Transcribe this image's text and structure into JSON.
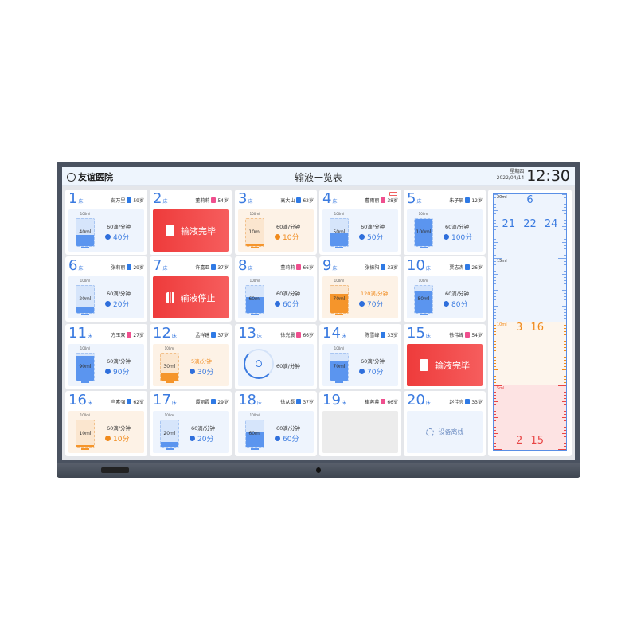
{
  "header": {
    "hospital": "友谊医院",
    "title": "输液一览表",
    "weekday": "星期四",
    "date": "2022/04/14",
    "time": "12:30"
  },
  "bed_suffix": "床",
  "colors": {
    "blue": "#3b7be0",
    "orange": "#f08a1c",
    "red": "#ee3b3b",
    "male": "#2f7ae5",
    "female": "#ef4f8e"
  },
  "cards": [
    {
      "bed": "1",
      "name": "彭万里",
      "gender": "male",
      "age": "59岁",
      "status": "normal",
      "capacity": "100ml",
      "volume": "40ml",
      "fill": 0.4,
      "rate": "60滴/分钟",
      "remaining": "40分"
    },
    {
      "bed": "2",
      "name": "董莉莉",
      "gender": "female",
      "age": "54岁",
      "status": "complete",
      "message": "输液完毕"
    },
    {
      "bed": "3",
      "name": "高大山",
      "gender": "male",
      "age": "62岁",
      "status": "warning",
      "capacity": "100ml",
      "volume": "10ml",
      "fill": 0.1,
      "rate": "60滴/分钟",
      "remaining": "10分"
    },
    {
      "bed": "4",
      "name": "曹雨丽",
      "gender": "female",
      "age": "38岁",
      "status": "normal",
      "battery_low": true,
      "capacity": "100ml",
      "volume": "50ml",
      "fill": 0.5,
      "rate": "60滴/分钟",
      "remaining": "50分"
    },
    {
      "bed": "5",
      "name": "朱子辰",
      "gender": "male",
      "age": "12岁",
      "status": "normal",
      "capacity": "100ml",
      "volume": "100ml",
      "fill": 1.0,
      "rate": "60滴/分钟",
      "remaining": "100分"
    },
    {
      "bed": "6",
      "name": "张莉丽",
      "gender": "male",
      "age": "29岁",
      "status": "normal",
      "capacity": "100ml",
      "volume": "20ml",
      "fill": 0.2,
      "rate": "60滴/分钟",
      "remaining": "20分"
    },
    {
      "bed": "7",
      "name": "许嘉亚",
      "gender": "male",
      "age": "37岁",
      "status": "stopped",
      "message": "输液停止"
    },
    {
      "bed": "8",
      "name": "董莉莉",
      "gender": "female",
      "age": "66岁",
      "status": "normal",
      "capacity": "100ml",
      "volume": "60ml",
      "fill": 0.6,
      "rate": "60滴/分钟",
      "remaining": "60分"
    },
    {
      "bed": "9",
      "name": "张振阳",
      "gender": "male",
      "age": "33岁",
      "status": "fast",
      "capacity": "100ml",
      "volume": "70ml",
      "fill": 0.7,
      "rate": "120滴/分钟",
      "remaining": "70分"
    },
    {
      "bed": "10",
      "name": "贾志杰",
      "gender": "male",
      "age": "26岁",
      "status": "normal",
      "capacity": "100ml",
      "volume": "80ml",
      "fill": 0.8,
      "rate": "60滴/分钟",
      "remaining": "80分"
    },
    {
      "bed": "11",
      "name": "方玉双",
      "gender": "female",
      "age": "27岁",
      "status": "normal",
      "capacity": "100ml",
      "volume": "90ml",
      "fill": 0.9,
      "rate": "60滴/分钟",
      "remaining": "90分"
    },
    {
      "bed": "12",
      "name": "孟祥建",
      "gender": "male",
      "age": "37岁",
      "status": "slow",
      "capacity": "100ml",
      "volume": "30ml",
      "fill": 0.3,
      "rate": "5滴/分钟",
      "remaining": "30分"
    },
    {
      "bed": "13",
      "name": "徐光晨",
      "gender": "female",
      "age": "66岁",
      "status": "measuring",
      "rate": "60滴/分钟"
    },
    {
      "bed": "14",
      "name": "陈雪峰",
      "gender": "male",
      "age": "33岁",
      "status": "normal",
      "capacity": "100ml",
      "volume": "70ml",
      "fill": 0.7,
      "rate": "60滴/分钟",
      "remaining": "70分"
    },
    {
      "bed": "15",
      "name": "徐伟峰",
      "gender": "female",
      "age": "54岁",
      "status": "complete",
      "message": "输液完毕"
    },
    {
      "bed": "16",
      "name": "乌素强",
      "gender": "male",
      "age": "62岁",
      "status": "warning",
      "capacity": "100ml",
      "volume": "10ml",
      "fill": 0.1,
      "rate": "60滴/分钟",
      "remaining": "10分"
    },
    {
      "bed": "17",
      "name": "谭丽霞",
      "gender": "male",
      "age": "29岁",
      "status": "normal",
      "capacity": "100ml",
      "volume": "20ml",
      "fill": 0.2,
      "rate": "60滴/分钟",
      "remaining": "20分"
    },
    {
      "bed": "18",
      "name": "徐从磊",
      "gender": "male",
      "age": "37岁",
      "status": "normal",
      "capacity": "100ml",
      "volume": "60ml",
      "fill": 0.6,
      "rate": "60滴/分钟",
      "remaining": "60分"
    },
    {
      "bed": "19",
      "name": "崔蓉蓉",
      "gender": "female",
      "age": "66岁",
      "status": "empty"
    },
    {
      "bed": "20",
      "name": "赵佳亮",
      "gender": "male",
      "age": "33岁",
      "status": "offline",
      "message": "设备离线"
    }
  ],
  "ruler": {
    "labels": [
      "20ml",
      "15ml",
      "10ml",
      "5ml"
    ],
    "zones": [
      {
        "level": "normal",
        "rows": [
          "6",
          "21 22 24"
        ]
      },
      {
        "level": "warning",
        "rows": [
          "3 16"
        ]
      },
      {
        "level": "critical",
        "rows": [
          "2 15"
        ]
      }
    ]
  }
}
